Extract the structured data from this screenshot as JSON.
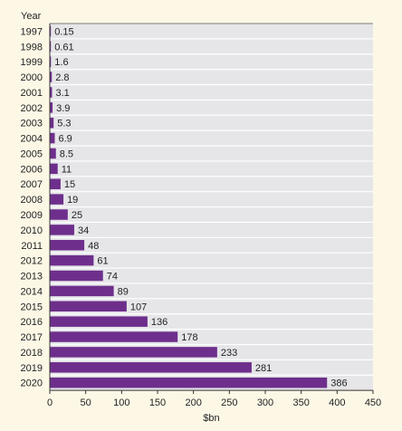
{
  "chart_data": {
    "type": "bar",
    "orientation": "horizontal",
    "ylabel": "Year",
    "xlabel": "$bn",
    "categories": [
      "1997",
      "1998",
      "1999",
      "2000",
      "2001",
      "2002",
      "2003",
      "2004",
      "2005",
      "2006",
      "2007",
      "2008",
      "2009",
      "2010",
      "2011",
      "2012",
      "2013",
      "2014",
      "2015",
      "2016",
      "2017",
      "2018",
      "2019",
      "2020"
    ],
    "values": [
      0.15,
      0.61,
      1.6,
      2.8,
      3.1,
      3.9,
      5.3,
      6.9,
      8.5,
      11,
      15,
      19,
      25,
      34,
      48,
      61,
      74,
      89,
      107,
      136,
      178,
      233,
      281,
      386
    ],
    "value_labels": [
      "0.15",
      "0.61",
      "1.6",
      "2.8",
      "3.1",
      "3.9",
      "5.3",
      "6.9",
      "8.5",
      "11",
      "15",
      "19",
      "25",
      "34",
      "48",
      "61",
      "74",
      "89",
      "107",
      "136",
      "178",
      "233",
      "281",
      "386"
    ],
    "xlim": [
      0,
      450
    ],
    "xticks": [
      "0",
      "50",
      "100",
      "150",
      "200",
      "250",
      "300",
      "350",
      "400",
      "450"
    ],
    "grid": false,
    "colors": {
      "bar": "#6e2f8c",
      "plot_background": "#e6e6e9",
      "page_background": "#fdf8e6",
      "separator": "#ffffff",
      "axis": "#333333",
      "text": "#222222"
    }
  }
}
